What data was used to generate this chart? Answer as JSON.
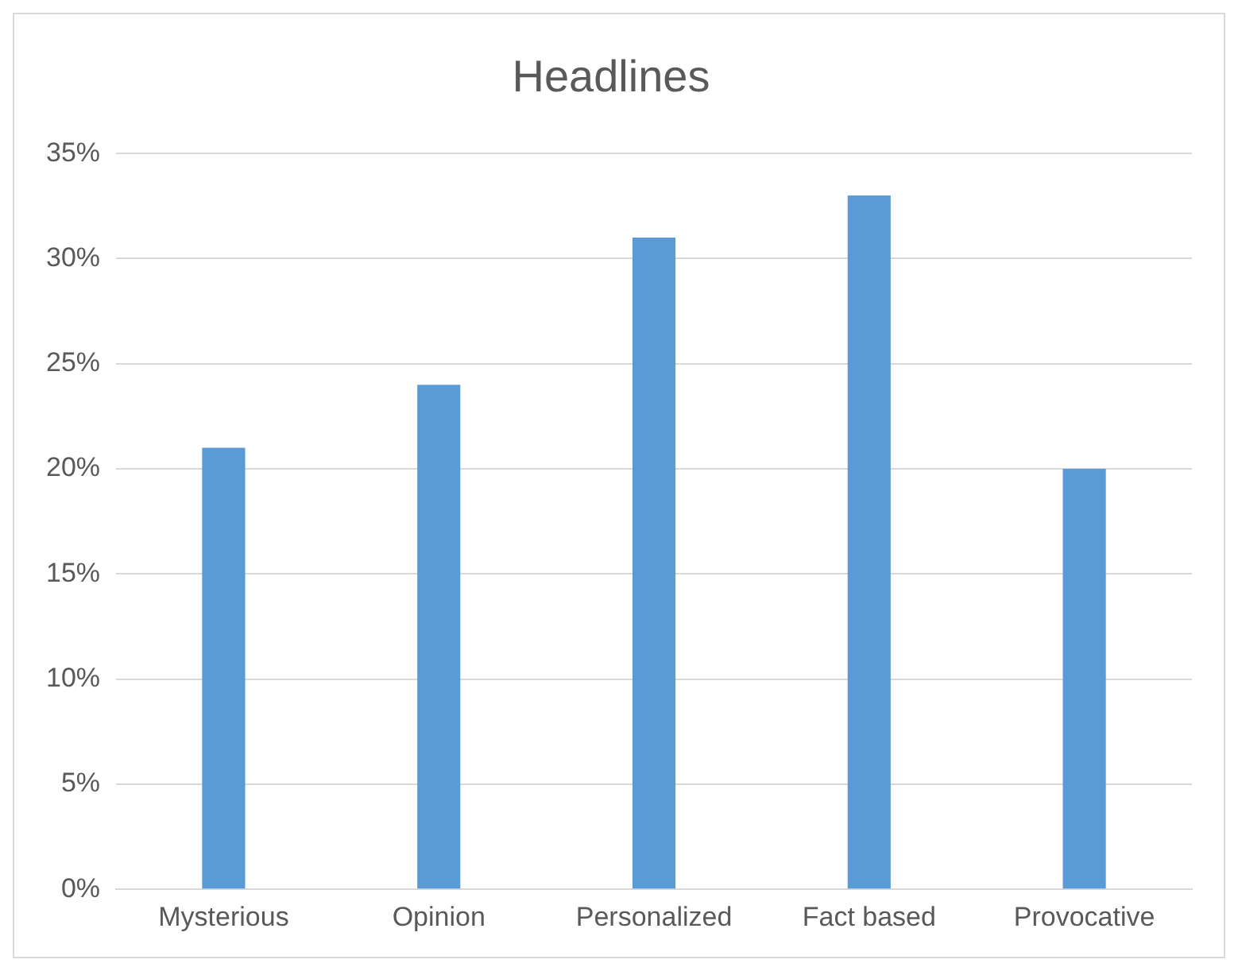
{
  "chart_data": {
    "type": "bar",
    "title": "Headlines",
    "categories": [
      "Mysterious",
      "Opinion",
      "Personalized",
      "Fact based",
      "Provocative"
    ],
    "values": [
      21,
      24,
      31,
      33,
      20
    ],
    "color": "#5b9bd5",
    "ylim": [
      0,
      35
    ],
    "yticks": [
      {
        "value": 0,
        "label": "0%"
      },
      {
        "value": 5,
        "label": "5%"
      },
      {
        "value": 10,
        "label": "10%"
      },
      {
        "value": 15,
        "label": "15%"
      },
      {
        "value": 20,
        "label": "20%"
      },
      {
        "value": 25,
        "label": "25%"
      },
      {
        "value": 30,
        "label": "30%"
      },
      {
        "value": 35,
        "label": "35%"
      }
    ],
    "grid": "y",
    "legend": false
  }
}
